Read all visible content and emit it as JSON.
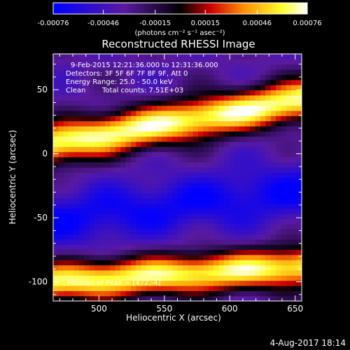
{
  "chart_data": {
    "type": "heatmap",
    "title": "Reconstructed RHESSI Image",
    "xlabel": "Heliocentric X (arcsec)",
    "ylabel": "Heliocentric Y (arcsec)",
    "xlim": [
      465,
      655
    ],
    "ylim": [
      -115,
      78
    ],
    "x_ticks": [
      "500",
      "550",
      "600",
      "650"
    ],
    "x_tick_values": [
      500,
      550,
      600,
      650
    ],
    "y_ticks": [
      "50",
      "0",
      "-50",
      "-100"
    ],
    "y_tick_values": [
      50,
      0,
      -50,
      -100
    ],
    "colorbar": {
      "ticks": [
        "-0.00076",
        "-0.00046",
        "-0.00015",
        "0.00015",
        "0.00046",
        "0.00076"
      ],
      "tick_values": [
        -0.00076,
        -0.00046,
        -0.00015,
        0.00015,
        0.00046,
        0.00076
      ],
      "range": [
        -0.00076,
        0.00076
      ],
      "units": "(photons cm⁻² s⁻¹ asec⁻²)"
    },
    "annotations": {
      "time": "9-Feb-2015 12:21:36.000 to 12:31:36.000",
      "detectors": "Detectors: 3F 5F 6F 7F 8F 9F, Att 0",
      "energy": "Energy Range: 25.0 - 50.0 keV",
      "clean": "Clean",
      "counts": "Total counts: 7.51E+03",
      "peak": "Position of Peak = [472,-4]"
    },
    "bands": [
      {
        "name": "upper bright",
        "y_at_xmin": 8,
        "y_at_xmax": 42,
        "width": 40,
        "value": 0.0007
      },
      {
        "name": "center dark",
        "y_at_xmin": -52,
        "y_at_xmax": -28,
        "width": 55,
        "value": -0.0007
      },
      {
        "name": "lower bright",
        "y_at_xmin": -100,
        "y_at_xmax": -88,
        "width": 38,
        "value": 0.00065
      }
    ],
    "colors": {
      "stops": [
        "#0000ff",
        "#5a1aa0",
        "#000000",
        "#d00000",
        "#ff9000",
        "#ffff30",
        "#ffffff"
      ],
      "frame": "#ffffff",
      "background": "#000000"
    }
  },
  "footer": {
    "date": "4-Aug-2017 18:14"
  }
}
